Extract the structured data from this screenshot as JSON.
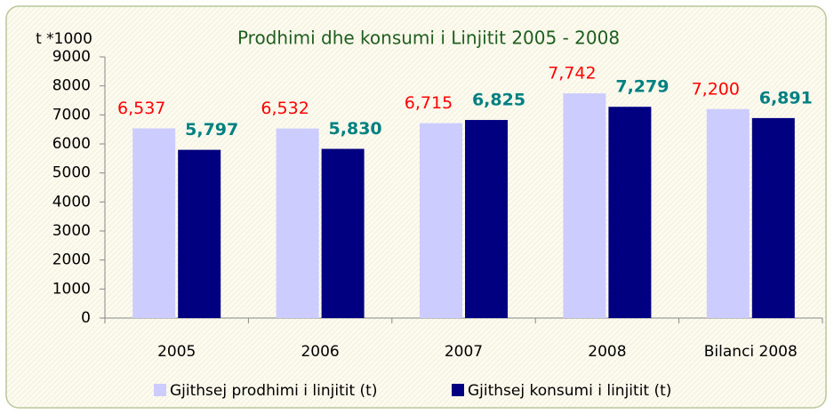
{
  "chart_data": {
    "type": "bar",
    "title": "Prodhimi dhe konsumi i Linjitit 2005 - 2008",
    "y_label": "t *1000",
    "categories": [
      "2005",
      "2006",
      "2007",
      "2008",
      "Bilanci 2008"
    ],
    "series": [
      {
        "name": "Gjithsej prodhimi i linjitit (t)",
        "color": "#ccccff",
        "label_color": "#ff0000",
        "values": [
          6537,
          6532,
          6715,
          7742,
          7200
        ],
        "value_labels": [
          "6,537",
          "6,532",
          "6,715",
          "7,742",
          "7,200"
        ]
      },
      {
        "name": "Gjithsej konsumi i linjitit (t)",
        "color": "#000080",
        "label_color": "#008080",
        "values": [
          5797,
          5830,
          6825,
          7279,
          6891
        ],
        "value_labels": [
          "5,797",
          "5,830",
          "6,825",
          "7,279",
          "6,891"
        ]
      }
    ],
    "ylim": [
      0,
      9000
    ],
    "yticks": [
      0,
      1000,
      2000,
      3000,
      4000,
      5000,
      6000,
      7000,
      8000,
      9000
    ],
    "grid": false,
    "legend": "bottom"
  }
}
